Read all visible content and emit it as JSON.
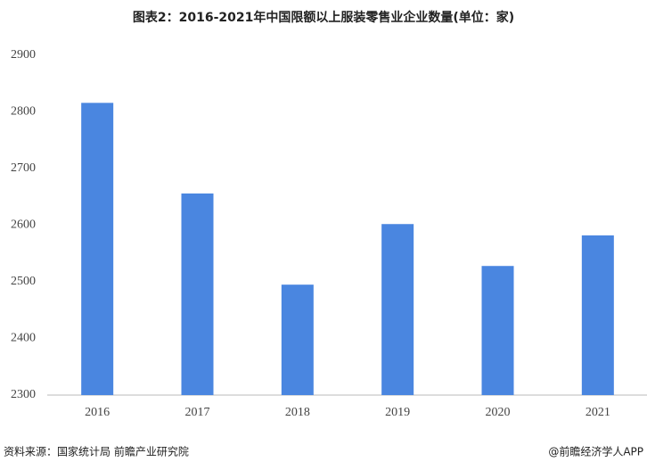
{
  "chart_data": {
    "type": "bar",
    "title": "图表2：2016-2021年中国限额以上服装零售业企业数量(单位：家)",
    "categories": [
      "2016",
      "2017",
      "2018",
      "2019",
      "2020",
      "2021"
    ],
    "values": [
      2816,
      2656,
      2495,
      2602,
      2528,
      2582
    ],
    "color": "#4a86e0",
    "ylim": [
      2300,
      2900
    ],
    "yticks": [
      2300,
      2400,
      2500,
      2600,
      2700,
      2800,
      2900
    ],
    "grid": false
  },
  "source": "资料来源：国家统计局 前瞻产业研究院",
  "credit": "@前瞻经济学人APP"
}
